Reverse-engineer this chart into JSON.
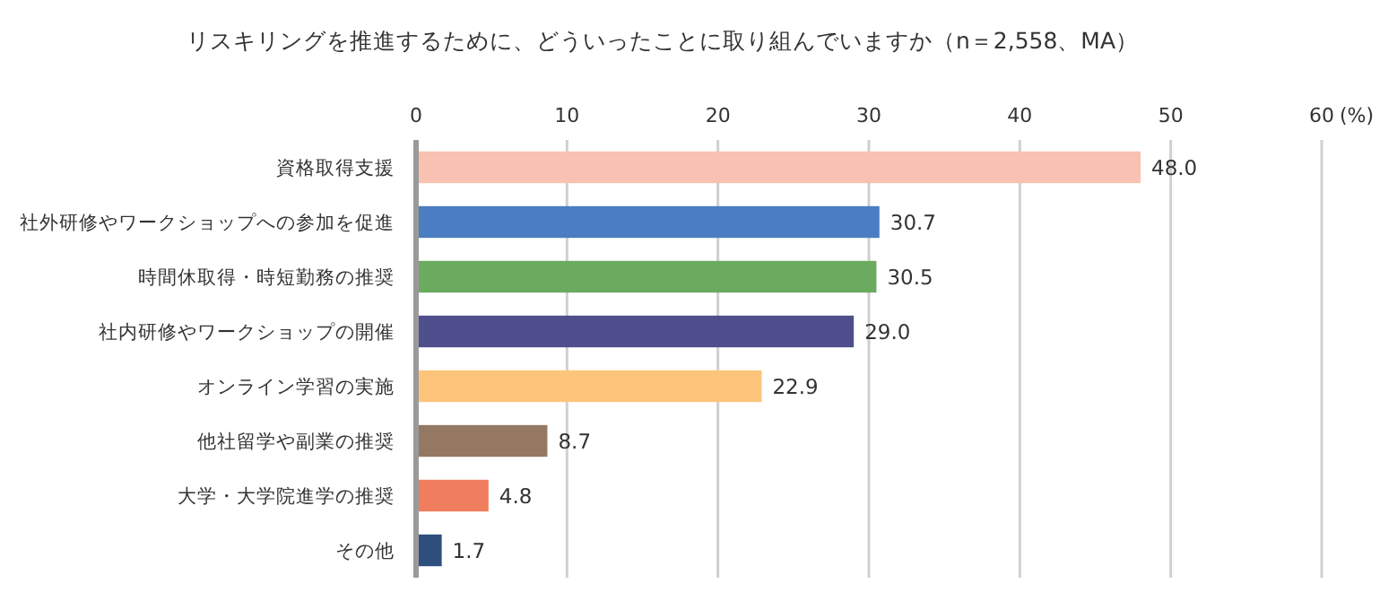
{
  "chart_data": {
    "type": "bar",
    "orientation": "horizontal",
    "title": "リスキリングを推進するために、どういったことに取り組んでいますか（n＝2,558、MA）",
    "xlabel": "(%)",
    "categories": [
      "資格取得支援",
      "社外研修やワークショップへの参加を促進",
      "時間休取得・時短勤務の推奨",
      "社内研修やワークショップの開催",
      "オンライン学習の実施",
      "他社留学や副業の推奨",
      "大学・大学院進学の推奨",
      "その他"
    ],
    "values": [
      48.0,
      30.7,
      30.5,
      29.0,
      22.9,
      8.7,
      4.8,
      1.7
    ],
    "colors": [
      "#f8c1b1",
      "#4a7dc1",
      "#6aab5f",
      "#4f4f8e",
      "#fdc57c",
      "#957862",
      "#f07d5d",
      "#2e4f7e"
    ],
    "value_labels": [
      "48.0",
      "30.7",
      "30.5",
      "29.0",
      "22.9",
      "8.7",
      "4.8",
      "1.7"
    ],
    "xlim": [
      0,
      60
    ],
    "xticks": [
      0,
      10,
      20,
      30,
      40,
      50,
      60
    ],
    "grid": "x"
  }
}
